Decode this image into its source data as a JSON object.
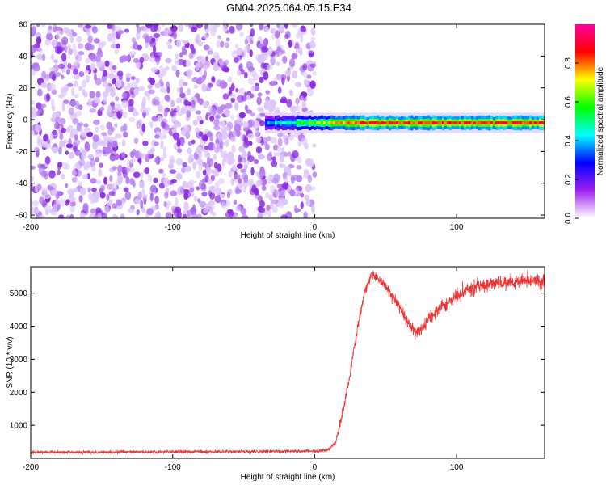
{
  "title": "GN04.2025.064.05.15.E34",
  "chart_data": [
    {
      "type": "heatmap",
      "xlabel": "Height of straight line (km)",
      "ylabel": "Frequency (Hz)",
      "xlim": [
        -200,
        162
      ],
      "ylim": [
        -62,
        60
      ],
      "xticks": [
        -200,
        -100,
        0,
        100
      ],
      "yticks": [
        -60,
        -40,
        -20,
        0,
        20,
        40,
        60
      ],
      "colorbar": {
        "label": "Normalized spectral amplitude",
        "range": [
          0,
          1
        ],
        "ticks": [
          0,
          0.2,
          0.4,
          0.6,
          0.8
        ],
        "tick_labels": [
          "0.0",
          "0.2",
          "0.4",
          "0.6",
          "0.8"
        ],
        "colors": [
          "#ffffff",
          "#a020f0",
          "#0000ff",
          "#00ffff",
          "#00ff00",
          "#ffff00",
          "#ff0000",
          "#ff00a0"
        ]
      },
      "description_regions": [
        {
          "x_range": [
            -200,
            0
          ],
          "y_range": [
            -62,
            60
          ],
          "amplitude": [
            0.05,
            0.2
          ],
          "pattern": "scattered noise"
        },
        {
          "x_range": [
            -35,
            162
          ],
          "y_center": -2,
          "y_halfwidth": 4,
          "amplitude": [
            0.3,
            1.0
          ],
          "pattern": "narrow band near 0 Hz"
        }
      ]
    },
    {
      "type": "line",
      "xlabel": "Height of straight line (km)",
      "ylabel": "SNR (10 * v/v)",
      "xlim": [
        -200,
        162
      ],
      "ylim": [
        0,
        5800
      ],
      "xticks": [
        -200,
        -100,
        0,
        100
      ],
      "yticks": [
        1000,
        2000,
        3000,
        4000,
        5000
      ],
      "color": "#ee3333",
      "series": [
        {
          "x": [
            -200,
            -150,
            -100,
            -50,
            0,
            10,
            15,
            20,
            25,
            30,
            35,
            40,
            45,
            50,
            55,
            60,
            65,
            70,
            75,
            80,
            90,
            100,
            110,
            120,
            130,
            140,
            150,
            162
          ],
          "y": [
            180,
            190,
            200,
            200,
            220,
            260,
            500,
            1400,
            2600,
            3900,
            5000,
            5550,
            5450,
            5200,
            4900,
            4550,
            4200,
            3800,
            3900,
            4200,
            4600,
            4950,
            5150,
            5250,
            5300,
            5350,
            5400,
            5350
          ],
          "noise": [
            40,
            40,
            40,
            40,
            40,
            50,
            80,
            120,
            150,
            150,
            130,
            120,
            130,
            150,
            150,
            150,
            160,
            160,
            160,
            160,
            170,
            170,
            170,
            170,
            170,
            170,
            170,
            170
          ]
        }
      ]
    }
  ]
}
